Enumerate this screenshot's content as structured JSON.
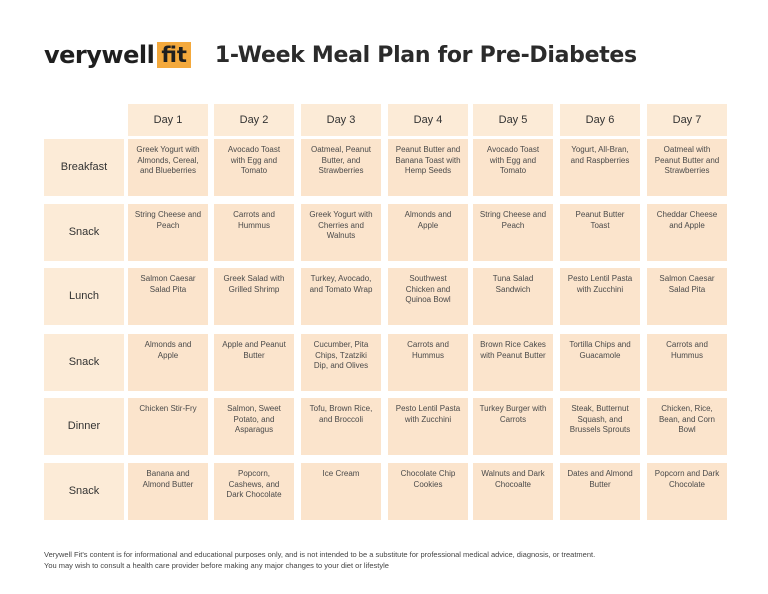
{
  "brand": {
    "word": "verywell",
    "fit": "fit"
  },
  "title": "1-Week Meal Plan for Pre-Diabetes",
  "days": [
    "Day 1",
    "Day 2",
    "Day 3",
    "Day 4",
    "Day 5",
    "Day 6",
    "Day 7"
  ],
  "meals": [
    {
      "label": "Breakfast",
      "items": [
        "Greek Yogurt with Almonds, Cereal, and Blueberries",
        "Avocado Toast with Egg and Tomato",
        "Oatmeal, Peanut Butter, and Strawberries",
        "Peanut Butter and Banana Toast with Hemp Seeds",
        "Avocado Toast with Egg and Tomato",
        "Yogurt, All-Bran, and Raspberries",
        "Oatmeal with Peanut Butter and Strawberries"
      ]
    },
    {
      "label": "Snack",
      "items": [
        "String Cheese and Peach",
        "Carrots and Hummus",
        "Greek Yogurt with Cherries and Walnuts",
        "Almonds and Apple",
        "String Cheese and Peach",
        "Peanut Butter Toast",
        "Cheddar Cheese and Apple"
      ]
    },
    {
      "label": "Lunch",
      "items": [
        "Salmon Caesar Salad Pita",
        "Greek Salad with Grilled Shrimp",
        "Turkey, Avocado, and Tomato Wrap",
        "Southwest Chicken and Quinoa Bowl",
        "Tuna Salad Sandwich",
        "Pesto Lentil Pasta with Zucchini",
        "Salmon Caesar Salad Pita"
      ]
    },
    {
      "label": "Snack",
      "items": [
        "Almonds and Apple",
        "Apple and Peanut Butter",
        "Cucumber, Pita Chips, Tzatziki Dip, and Olives",
        "Carrots and Hummus",
        "Brown Rice Cakes with Peanut Butter",
        "Tortilla Chips and Guacamole",
        "Carrots and Hummus"
      ]
    },
    {
      "label": "Dinner",
      "items": [
        "Chicken Stir-Fry",
        "Salmon, Sweet Potato, and Asparagus",
        "Tofu, Brown Rice, and Broccoli",
        "Pesto Lentil Pasta with Zucchini",
        "Turkey Burger with Carrots",
        "Steak, Butternut Squash, and Brussels Sprouts",
        "Chicken, Rice, Bean, and Corn Bowl"
      ]
    },
    {
      "label": "Snack",
      "items": [
        "Banana and Almond Butter",
        "Popcorn, Cashews, and Dark Chocolate",
        "Ice Cream",
        "Chocolate Chip Cookies",
        "Walnuts and Dark Chocoalte",
        "Dates and Almond Butter",
        "Popcorn and Dark Chocolate"
      ]
    }
  ],
  "footer": [
    "Verywell Fit's content is for informational and educational purposes only, and is not intended to be a substitute for professional medical advice, diagnosis, or treatment.",
    "You may wish to consult a health care provider before making any major changes to your diet or lifestyle"
  ]
}
